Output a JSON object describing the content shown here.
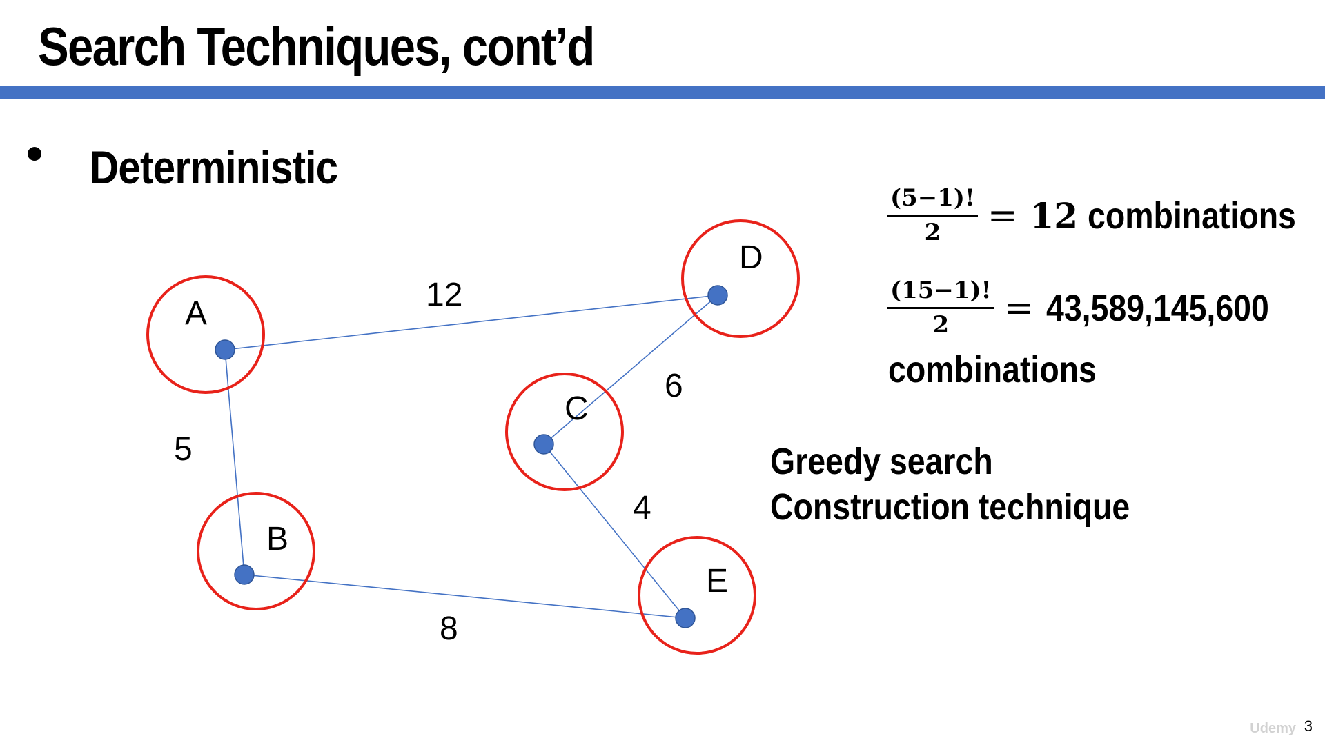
{
  "slide": {
    "title": "Search Techniques, cont’d",
    "bullet": "Deterministic",
    "page_number": "3",
    "watermark": "Udemy",
    "accent_color": "#4472c4"
  },
  "graph": {
    "node_marker_color": "#4472c4",
    "highlight_ring_color": "#e8221a",
    "nodes": [
      {
        "id": "A",
        "label": "A"
      },
      {
        "id": "B",
        "label": "B"
      },
      {
        "id": "C",
        "label": "C"
      },
      {
        "id": "D",
        "label": "D"
      },
      {
        "id": "E",
        "label": "E"
      }
    ],
    "edges": [
      {
        "from": "A",
        "to": "D",
        "weight": "12"
      },
      {
        "from": "A",
        "to": "B",
        "weight": "5"
      },
      {
        "from": "D",
        "to": "C",
        "weight": "6"
      },
      {
        "from": "C",
        "to": "E",
        "weight": "4"
      },
      {
        "from": "B",
        "to": "E",
        "weight": "8"
      }
    ]
  },
  "formulas": [
    {
      "numerator": "(5−1)!",
      "denominator": "2",
      "equals": "=",
      "value": "12",
      "result": "combinations"
    },
    {
      "numerator": "(15−1)!",
      "denominator": "2",
      "equals": "=",
      "value": "",
      "result": "43,589,145,600",
      "result_line2": "combinations"
    }
  ],
  "notes": {
    "line1": "Greedy search",
    "line2": "Construction technique"
  }
}
